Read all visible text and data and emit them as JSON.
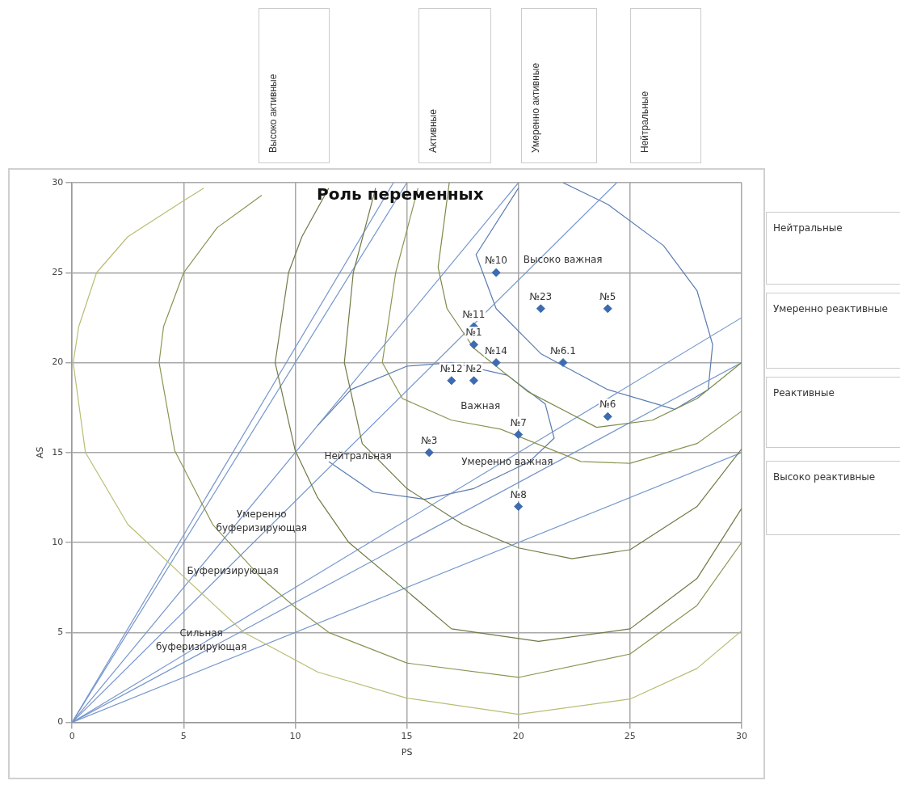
{
  "chart_data": {
    "type": "scatter",
    "title": "Роль переменных",
    "xlabel": "PS",
    "ylabel": "AS",
    "xlim": [
      0,
      30
    ],
    "ylim": [
      0,
      30
    ],
    "xticks": [
      0,
      5,
      10,
      15,
      20,
      25,
      30
    ],
    "yticks": [
      0,
      5,
      10,
      15,
      20,
      25,
      30
    ],
    "grid": true,
    "legend": false,
    "series": [
      {
        "type": "line",
        "color": "#b9bd74",
        "x": [
          5.9,
          5,
          2.5,
          1.1,
          0.3,
          0.05,
          0.6,
          2.5,
          5,
          7.7,
          11,
          15,
          20,
          25,
          28,
          30
        ],
        "values": [
          29.7,
          29,
          27,
          25,
          22,
          20,
          15,
          11,
          8.1,
          5,
          2.8,
          1.35,
          0.45,
          1.3,
          3,
          5.1
        ]
      },
      {
        "type": "line",
        "color": "#8a9552",
        "x": [
          8.5,
          6.5,
          5,
          4.1,
          3.9,
          4.6,
          6.3,
          8.5,
          10,
          11.5,
          15,
          20,
          25,
          28,
          30
        ],
        "values": [
          29.3,
          27.5,
          25,
          22,
          20,
          15.1,
          11,
          8,
          6.4,
          5,
          3.3,
          2.5,
          3.8,
          6.5,
          10
        ]
      },
      {
        "type": "line",
        "color": "#6f7a45",
        "x": [
          11.5,
          10.3,
          9.7,
          9.1,
          10,
          11,
          12.4,
          15,
          17,
          20.9,
          25,
          28,
          30
        ],
        "values": [
          29.7,
          27,
          25,
          20,
          15.1,
          12.5,
          10,
          7.3,
          5.2,
          4.5,
          5.2,
          8,
          11.9
        ]
      },
      {
        "type": "line",
        "color": "#6f7a45",
        "x": [
          13.6,
          12.6,
          12.2,
          13,
          15,
          17.5,
          20,
          22.4,
          25,
          28,
          30
        ],
        "values": [
          29.7,
          25,
          20,
          15.5,
          13,
          11,
          9.7,
          9.1,
          9.6,
          12,
          15.2
        ]
      },
      {
        "type": "line",
        "color": "#8a9552",
        "x": [
          15.5,
          14.5,
          13.9,
          14.8,
          17,
          19.2,
          22.8,
          25,
          28,
          30
        ],
        "values": [
          29.7,
          25,
          20,
          18,
          16.8,
          16.3,
          14.5,
          14.4,
          15.5,
          17.3
        ]
      },
      {
        "type": "line",
        "color": "#7d8a4a",
        "x": [
          16.9,
          16.4,
          16.8,
          18,
          20.4,
          23.5,
          26,
          28,
          30
        ],
        "values": [
          30,
          25.3,
          23,
          20.8,
          18.4,
          16.4,
          16.8,
          18,
          20
        ]
      },
      {
        "type": "line",
        "color": "#7596cc",
        "x": [
          0,
          14.4
        ],
        "values": [
          0,
          30
        ]
      },
      {
        "type": "line",
        "color": "#7596cc",
        "x": [
          0,
          15
        ],
        "values": [
          0,
          30
        ]
      },
      {
        "type": "line",
        "color": "#7596cc",
        "x": [
          0,
          20
        ],
        "values": [
          0,
          30
        ]
      },
      {
        "type": "line",
        "color": "#7596cc",
        "x": [
          0,
          24.4
        ],
        "values": [
          0,
          30
        ]
      },
      {
        "type": "line",
        "color": "#7596cc",
        "x": [
          0,
          30
        ],
        "values": [
          0,
          22.5
        ]
      },
      {
        "type": "line",
        "color": "#7596cc",
        "x": [
          0,
          30
        ],
        "values": [
          0,
          20
        ]
      },
      {
        "type": "line",
        "color": "#7596cc",
        "x": [
          0,
          30
        ],
        "values": [
          0,
          15
        ]
      },
      {
        "type": "line",
        "color": "#5a7bb0",
        "x": [
          20,
          18.1,
          19,
          21,
          24,
          27,
          28.5,
          28.7,
          28,
          26.5,
          24,
          22
        ],
        "values": [
          29.7,
          26,
          23,
          20.5,
          18.5,
          17.4,
          18.5,
          21,
          24,
          26.5,
          28.8,
          30
        ]
      },
      {
        "type": "line",
        "color": "#5a7bb0",
        "x": [
          11,
          12.5,
          15,
          17,
          19.5,
          21.2,
          21.6,
          20.5,
          18,
          15.8,
          13.5,
          11.5
        ],
        "values": [
          16.5,
          18.5,
          19.8,
          20,
          19.3,
          17.7,
          15.8,
          14.5,
          13,
          12.4,
          12.8,
          14.5
        ]
      },
      {
        "color": "#3c6bb0",
        "marker": "diamond",
        "x": [
          19,
          21,
          24,
          18,
          18,
          19,
          22,
          17,
          18,
          24,
          20,
          16,
          20
        ],
        "values": [
          25,
          23,
          23,
          22,
          21,
          20,
          20,
          19,
          19,
          17,
          16,
          15,
          12
        ]
      }
    ],
    "annotations": [
      {
        "text": "№10",
        "x": 19,
        "y": 25
      },
      {
        "text": "№23",
        "x": 21,
        "y": 23
      },
      {
        "text": "№5",
        "x": 24,
        "y": 23
      },
      {
        "text": "№11",
        "x": 18,
        "y": 22
      },
      {
        "text": "№1",
        "x": 18,
        "y": 21
      },
      {
        "text": "№14",
        "x": 19,
        "y": 20
      },
      {
        "text": "№6.1",
        "x": 22,
        "y": 20
      },
      {
        "text": "№12",
        "x": 17,
        "y": 19
      },
      {
        "text": "№2",
        "x": 18,
        "y": 19
      },
      {
        "text": "№6",
        "x": 24,
        "y": 17
      },
      {
        "text": "№7",
        "x": 20,
        "y": 16
      },
      {
        "text": "№3",
        "x": 16,
        "y": 15
      },
      {
        "text": "№8",
        "x": 20,
        "y": 12
      },
      "Высоко важная",
      "Важная",
      "Умеренно важная",
      "Нейтральная",
      "Умеренно\nбуферизирующая",
      "Буферизирующая",
      "Сильная\nбуферизирующая",
      "Высоко активные",
      "Активные",
      "Умеренно активные",
      "Нейтральные",
      "Нейтральные",
      "Умеренно реактивные",
      "Реактивные",
      "Высоко реактивные"
    ]
  }
}
